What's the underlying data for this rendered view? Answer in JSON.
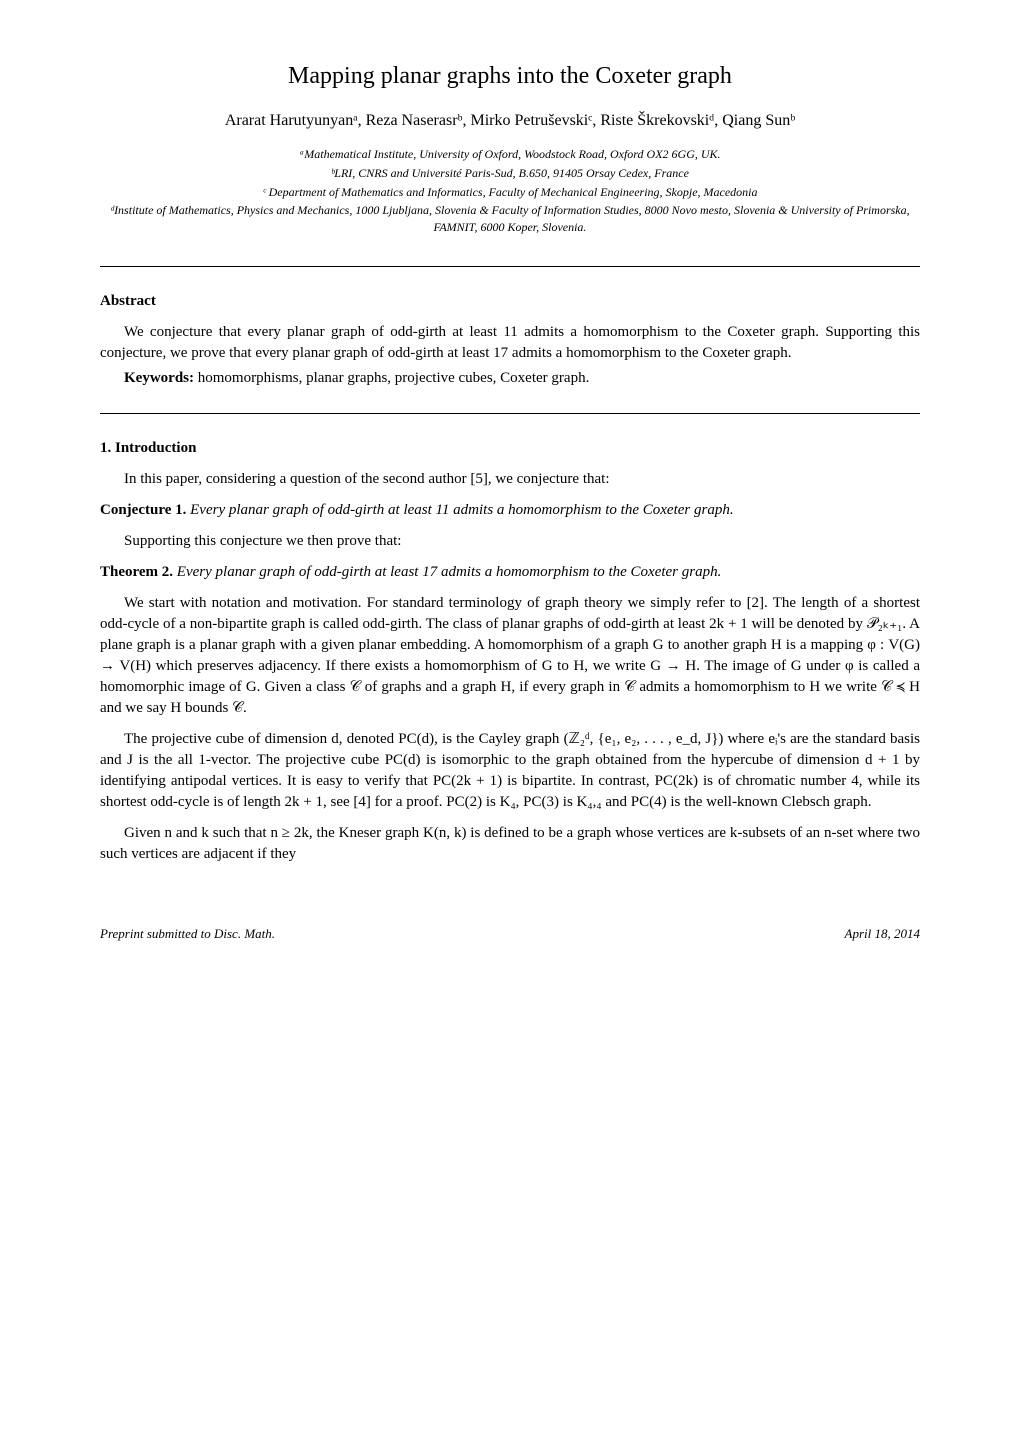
{
  "title": "Mapping planar graphs into the Coxeter graph",
  "authors_line": "Ararat Harutyunyanᵃ, Reza Naserasrᵇ, Mirko Petruševskiᶜ, Riste Škrekovskiᵈ, Qiang Sunᵇ",
  "affiliations": {
    "a": "ᵃMathematical Institute, University of Oxford, Woodstock Road, Oxford OX2 6GG, UK.",
    "b": "ᵇLRI, CNRS and Université Paris-Sud, B.650, 91405 Orsay Cedex, France",
    "c": "ᶜ Department of Mathematics and Informatics, Faculty of Mechanical Engineering, Skopje, Macedonia",
    "d": "ᵈInstitute of Mathematics, Physics and Mechanics, 1000 Ljubljana, Slovenia & Faculty of Information Studies, 8000 Novo mesto, Slovenia & University of Primorska, FAMNIT, 6000 Koper, Slovenia."
  },
  "abstract": {
    "heading": "Abstract",
    "para1": "We conjecture that every planar graph of odd-girth at least 11 admits a homomorphism to the Coxeter graph. Supporting this conjecture, we prove that every planar graph of odd-girth at least 17 admits a homomorphism to the Coxeter graph.",
    "keywords_label": "Keywords:",
    "keywords_text": " homomorphisms, planar graphs, projective cubes, Coxeter graph."
  },
  "section1": {
    "heading": "1. Introduction",
    "intro": "In this paper, considering a question of the second author [5], we conjecture that:",
    "conjecture_label": "Conjecture 1.",
    "conjecture_body": " Every planar graph of odd-girth at least 11 admits a homomorphism to the Coxeter graph.",
    "supporting": "Supporting this conjecture we then prove that:",
    "theorem_label": "Theorem 2.",
    "theorem_body": " Every planar graph of odd-girth at least 17 admits a homomorphism to the Coxeter graph.",
    "para_notation": "We start with notation and motivation. For standard terminology of graph theory we simply refer to [2]. The length of a shortest odd-cycle of a non-bipartite graph is called odd-girth. The class of planar graphs of odd-girth at least 2k + 1 will be denoted by 𝒫₂ₖ₊₁. A plane graph is a planar graph with a given planar embedding. A homomorphism of a graph G to another graph H is a mapping φ : V(G) → V(H) which preserves adjacency. If there exists a homomorphism of G to H, we write G → H. The image of G under φ is called a homomorphic image of G. Given a class 𝒞 of graphs and a graph H, if every graph in 𝒞 admits a homomorphism to H we write 𝒞 ≼ H and we say H bounds 𝒞.",
    "para_projective": "The projective cube of dimension d, denoted PC(d), is the Cayley graph (ℤ₂ᵈ, {e₁, e₂, . . . , e_d, J}) where eᵢ's are the standard basis and J is the all 1-vector. The projective cube PC(d) is isomorphic to the graph obtained from the hypercube of dimension d + 1 by identifying antipodal vertices. It is easy to verify that PC(2k + 1) is bipartite. In contrast, PC(2k) is of chromatic number 4, while its shortest odd-cycle is of length 2k + 1, see [4] for a proof. PC(2) is K₄, PC(3) is K₄,₄ and PC(4) is the well-known Clebsch graph.",
    "para_kneser": "Given n and k such that n ≥ 2k, the Kneser graph K(n, k) is defined to be a graph whose vertices are k-subsets of an n-set where two such vertices are adjacent if they"
  },
  "footer": {
    "left": "Preprint submitted to Disc. Math.",
    "right": "April 18, 2014"
  }
}
